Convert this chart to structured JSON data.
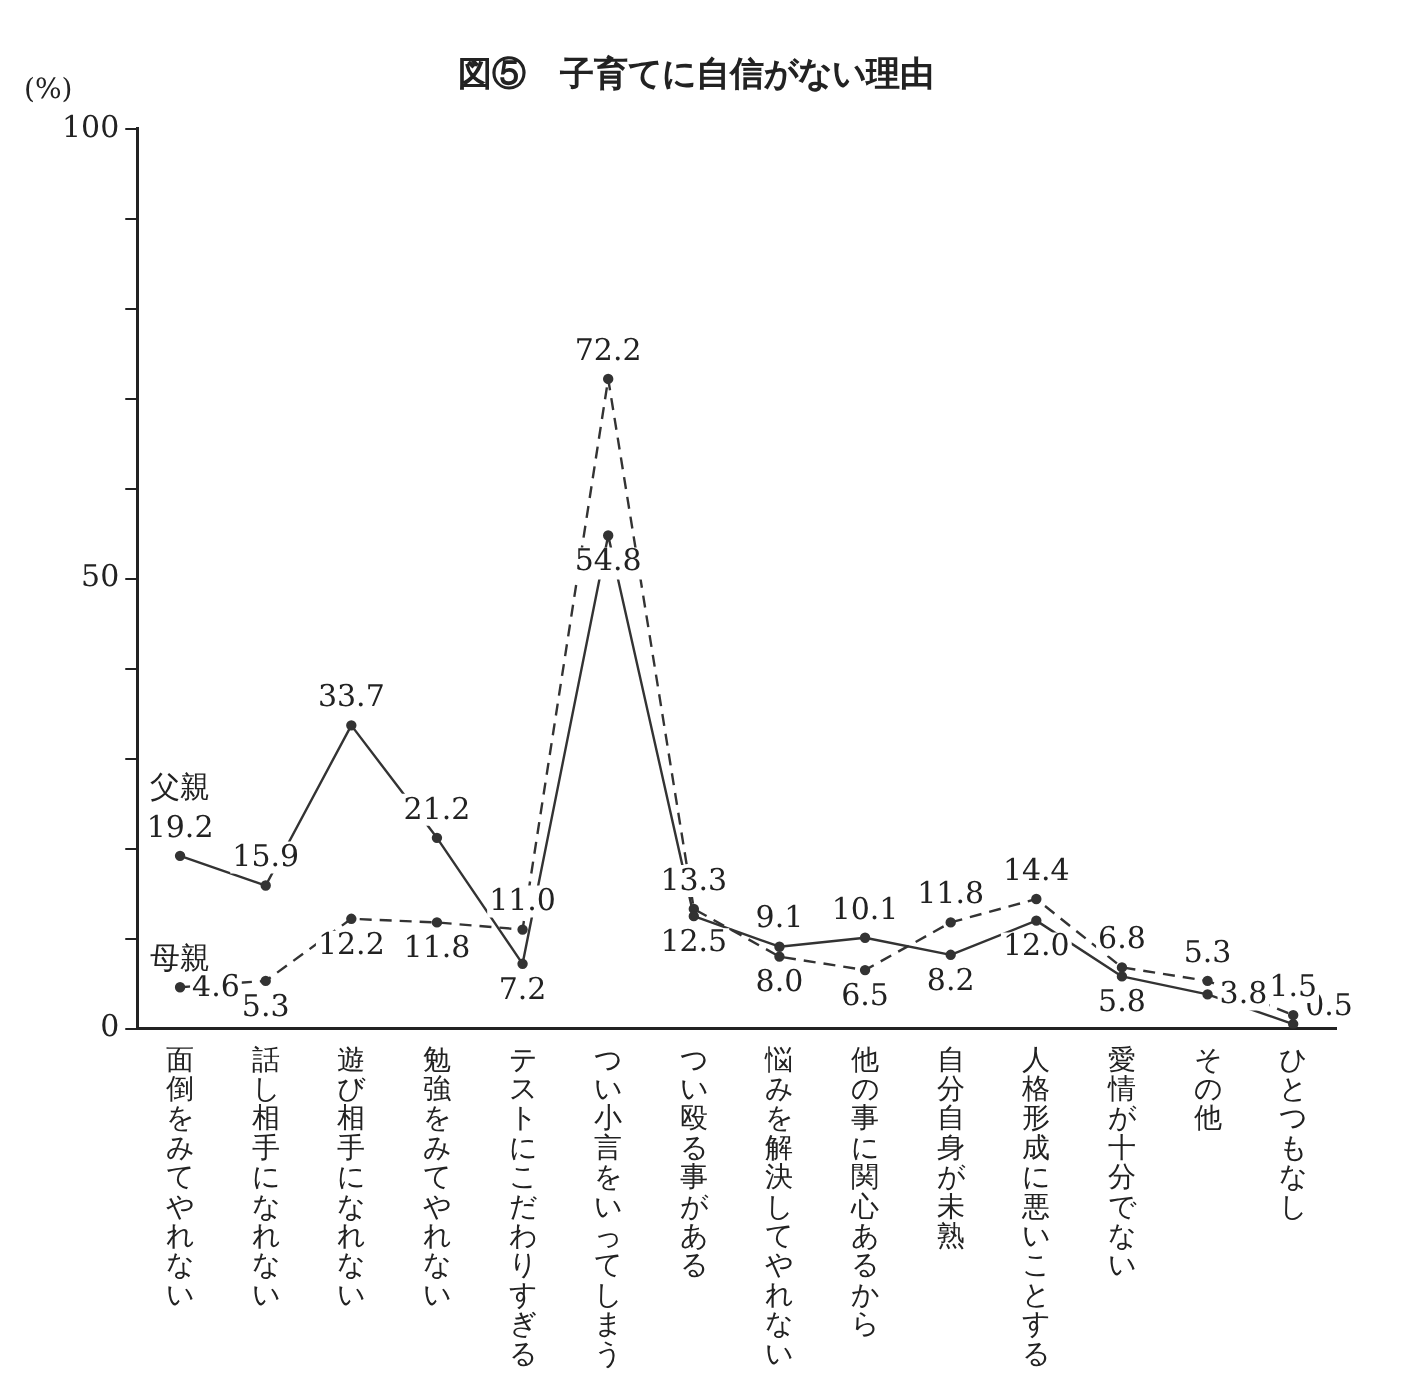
{
  "chart_data": {
    "type": "line",
    "title": "図⑤　子育てに自信がない理由",
    "ylabel": "(%)",
    "categories": [
      "面倒をみてやれない",
      "話し相手になれない",
      "遊び相手になれない",
      "勉強をみてやれない",
      "テストにこだわりすぎる",
      "つい小言をいってしまう",
      "つい殴る事がある",
      "悩みを解決してやれない",
      "他の事に関心あるから",
      "自分自身が未熟",
      "人格形成に悪いことする",
      "愛情が十分でない",
      "その他",
      "ひとつもなし"
    ],
    "series": [
      {
        "name": "父親",
        "color": "#333333",
        "line_style": "solid",
        "values": [
          19.2,
          15.9,
          33.7,
          21.2,
          7.2,
          54.8,
          12.5,
          9.1,
          10.1,
          8.2,
          12.0,
          5.8,
          3.8,
          0.5
        ],
        "value_labels": [
          "19.2",
          "15.9",
          "33.7",
          "21.2",
          "7.2",
          "54.8",
          "12.5",
          "9.1",
          "10.1",
          "8.2",
          "12.0",
          "5.8",
          "3.8",
          "0.5"
        ]
      },
      {
        "name": "母親",
        "color": "#333333",
        "line_style": "dashed",
        "values": [
          4.6,
          5.3,
          12.2,
          11.8,
          11.0,
          72.2,
          13.3,
          8.0,
          6.5,
          11.8,
          14.4,
          6.8,
          5.3,
          1.5
        ],
        "value_labels": [
          "4.6",
          "5.3",
          "12.2",
          "11.8",
          "11.0",
          "72.2",
          "13.3",
          "8.0",
          "6.5",
          "11.8",
          "14.4",
          "6.8",
          "5.3",
          "1.5"
        ]
      }
    ],
    "ylim": [
      0,
      100
    ],
    "yticks": [
      0,
      {
        "value": 10,
        "label": null
      },
      {
        "value": 20,
        "label": null
      },
      {
        "value": 30,
        "label": null
      },
      {
        "value": 40,
        "label": null
      },
      50,
      {
        "value": 60,
        "label": null
      },
      {
        "value": 70,
        "label": null
      },
      {
        "value": 80,
        "label": null
      },
      {
        "value": 90,
        "label": null
      },
      100
    ],
    "grid": false,
    "legend": false,
    "marker": "circle"
  }
}
